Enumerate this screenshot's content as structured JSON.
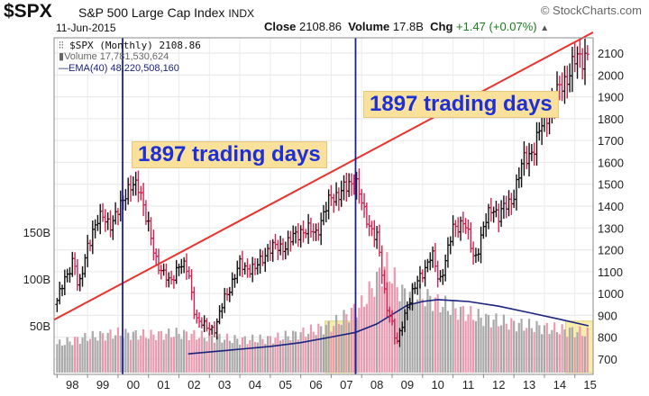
{
  "header": {
    "symbol": "$SPX",
    "name": "S&P 500 Large Cap Index",
    "exchange": "INDX",
    "date": "11-Jun-2015",
    "logo": "© StockCharts.com",
    "close_label": "Close",
    "close_value": "2108.86",
    "volume_label": "Volume",
    "volume_value": "17.8B",
    "chg_label": "Chg",
    "chg_value": "+1.47 (+0.07%)",
    "chg_icon": "triangle-up-icon"
  },
  "legend": {
    "price": "$SPX (Monthly) 2108.86",
    "volume": "Volume 17,781,530,624",
    "ema": "EMA(40) 48,220,508,160"
  },
  "annotations": [
    {
      "text": "1897 trading days"
    },
    {
      "text": "1897 trading days"
    }
  ],
  "colors": {
    "up": "#111111",
    "down": "#d6204e",
    "trendline": "#e8322b",
    "marker": "#1c1c9e",
    "ema": "#1a237e",
    "highlight": "#f7ea9f",
    "annotation_bg": "#f9e19b",
    "annotation_text": "#1d2fd6"
  },
  "chart_data": {
    "type": "ohlc",
    "title": "$SPX S&P 500 Large Cap Index",
    "period": "monthly",
    "x_tick_labels": [
      "98",
      "99",
      "00",
      "01",
      "02",
      "03",
      "04",
      "05",
      "06",
      "07",
      "08",
      "09",
      "10",
      "11",
      "12",
      "13",
      "14",
      "15"
    ],
    "y_ticks": [
      700,
      800,
      900,
      1000,
      1100,
      1200,
      1300,
      1400,
      1500,
      1600,
      1700,
      1800,
      1900,
      2000,
      2100
    ],
    "ylim": [
      630,
      2170
    ],
    "volume_ticks": [
      {
        "label": "50B",
        "value": 50
      },
      {
        "label": "100B",
        "value": 100
      },
      {
        "label": "150B",
        "value": 150
      }
    ],
    "volume_unit": "B",
    "x_range": [
      1997.9,
      2015.6
    ],
    "price_anchors": [
      [
        1997.95,
        950
      ],
      [
        1998.55,
        1170
      ],
      [
        1998.7,
        1000
      ],
      [
        1999.0,
        1230
      ],
      [
        1999.5,
        1370
      ],
      [
        1999.8,
        1300
      ],
      [
        2000.2,
        1460
      ],
      [
        2000.7,
        1500
      ],
      [
        2000.95,
        1330
      ],
      [
        2001.2,
        1170
      ],
      [
        2001.7,
        1040
      ],
      [
        2002.0,
        1140
      ],
      [
        2002.3,
        1100
      ],
      [
        2002.55,
        890
      ],
      [
        2002.8,
        850
      ],
      [
        2003.2,
        840
      ],
      [
        2003.5,
        980
      ],
      [
        2004.0,
        1130
      ],
      [
        2004.5,
        1110
      ],
      [
        2004.9,
        1200
      ],
      [
        2005.5,
        1220
      ],
      [
        2006.0,
        1290
      ],
      [
        2006.5,
        1280
      ],
      [
        2007.0,
        1440
      ],
      [
        2007.5,
        1480
      ],
      [
        2007.8,
        1530
      ],
      [
        2008.1,
        1350
      ],
      [
        2008.5,
        1260
      ],
      [
        2008.8,
        950
      ],
      [
        2008.95,
        900
      ],
      [
        2009.15,
        760
      ],
      [
        2009.5,
        950
      ],
      [
        2010.0,
        1100
      ],
      [
        2010.3,
        1180
      ],
      [
        2010.55,
        1050
      ],
      [
        2011.0,
        1290
      ],
      [
        2011.35,
        1340
      ],
      [
        2011.7,
        1150
      ],
      [
        2012.0,
        1300
      ],
      [
        2012.3,
        1400
      ],
      [
        2012.5,
        1360
      ],
      [
        2012.9,
        1420
      ],
      [
        2013.3,
        1600
      ],
      [
        2013.7,
        1680
      ],
      [
        2014.0,
        1800
      ],
      [
        2014.3,
        1880
      ],
      [
        2014.6,
        1960
      ],
      [
        2014.8,
        2010
      ],
      [
        2015.0,
        2060
      ],
      [
        2015.3,
        2090
      ],
      [
        2015.45,
        2110
      ]
    ],
    "volume_anchors": [
      [
        1997.95,
        30
      ],
      [
        1999.0,
        38
      ],
      [
        2000.0,
        42
      ],
      [
        2001.0,
        40
      ],
      [
        2002.0,
        42
      ],
      [
        2003.0,
        38
      ],
      [
        2004.0,
        35
      ],
      [
        2005.0,
        36
      ],
      [
        2006.0,
        42
      ],
      [
        2007.0,
        50
      ],
      [
        2008.0,
        72
      ],
      [
        2008.8,
        115
      ],
      [
        2009.3,
        85
      ],
      [
        2010.0,
        82
      ],
      [
        2011.0,
        68
      ],
      [
        2012.0,
        58
      ],
      [
        2013.0,
        52
      ],
      [
        2014.0,
        48
      ],
      [
        2015.45,
        42
      ]
    ],
    "ema_anchors": [
      [
        2002.3,
        20
      ],
      [
        2003.0,
        22
      ],
      [
        2004.0,
        25
      ],
      [
        2005.0,
        28
      ],
      [
        2006.0,
        32
      ],
      [
        2007.0,
        38
      ],
      [
        2007.8,
        43
      ],
      [
        2008.5,
        52
      ],
      [
        2009.0,
        62
      ],
      [
        2009.5,
        72
      ],
      [
        2010.0,
        76
      ],
      [
        2010.5,
        78
      ],
      [
        2011.5,
        76
      ],
      [
        2012.5,
        71
      ],
      [
        2013.5,
        64
      ],
      [
        2014.5,
        57
      ],
      [
        2015.45,
        50
      ]
    ],
    "trendline": {
      "from": [
        1997.9,
        880
      ],
      "to": [
        2015.6,
        2195
      ]
    },
    "vertical_markers": [
      2000.15,
      2007.8
    ],
    "highlight_boxes": [
      {
        "x": [
          2006.8,
          2007.9
        ],
        "y": [
          0,
          55
        ]
      },
      {
        "x": [
          2014.7,
          2015.6
        ],
        "y": [
          0,
          55
        ]
      }
    ]
  }
}
